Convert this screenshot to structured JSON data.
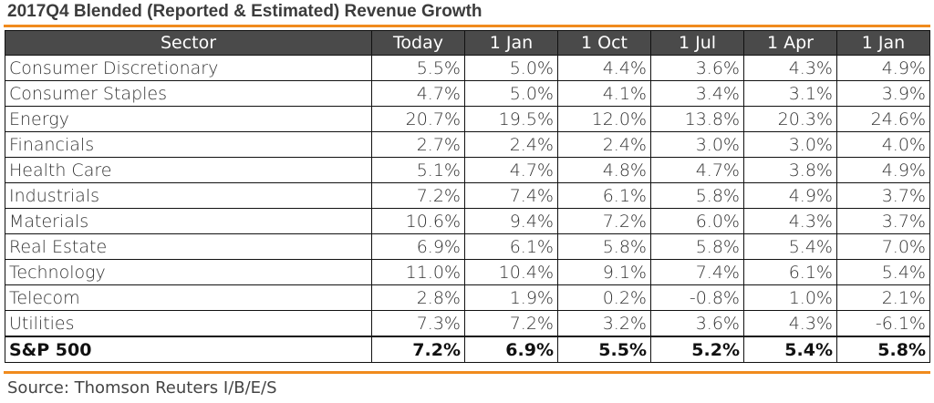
{
  "title": "2017Q4 Blended (Reported & Estimated) Revenue Growth",
  "table": {
    "headers": [
      "Sector",
      "Today",
      "1 Jan",
      "1 Oct",
      "1 Jul",
      "1 Apr",
      "1 Jan"
    ],
    "rows": [
      {
        "sector": "Consumer Discretionary",
        "values": [
          "5.5%",
          "5.0%",
          "4.4%",
          "3.6%",
          "4.3%",
          "4.9%"
        ]
      },
      {
        "sector": "Consumer Staples",
        "values": [
          "4.7%",
          "5.0%",
          "4.1%",
          "3.4%",
          "3.1%",
          "3.9%"
        ]
      },
      {
        "sector": "Energy",
        "values": [
          "20.7%",
          "19.5%",
          "12.0%",
          "13.8%",
          "20.3%",
          "24.6%"
        ]
      },
      {
        "sector": "Financials",
        "values": [
          "2.7%",
          "2.4%",
          "2.4%",
          "3.0%",
          "3.0%",
          "4.0%"
        ]
      },
      {
        "sector": "Health Care",
        "values": [
          "5.1%",
          "4.7%",
          "4.8%",
          "4.7%",
          "3.8%",
          "4.9%"
        ]
      },
      {
        "sector": "Industrials",
        "values": [
          "7.2%",
          "7.4%",
          "6.1%",
          "5.8%",
          "4.9%",
          "3.7%"
        ]
      },
      {
        "sector": "Materials",
        "values": [
          "10.6%",
          "9.4%",
          "7.2%",
          "6.0%",
          "4.3%",
          "3.7%"
        ]
      },
      {
        "sector": "Real Estate",
        "values": [
          "6.9%",
          "6.1%",
          "5.8%",
          "5.8%",
          "5.4%",
          "7.0%"
        ]
      },
      {
        "sector": "Technology",
        "values": [
          "11.0%",
          "10.4%",
          "9.1%",
          "7.4%",
          "6.1%",
          "5.4%"
        ]
      },
      {
        "sector": "Telecom",
        "values": [
          "2.8%",
          "1.9%",
          "0.2%",
          "-0.8%",
          "1.0%",
          "2.1%"
        ]
      },
      {
        "sector": "Utilities",
        "values": [
          "7.3%",
          "7.2%",
          "3.2%",
          "3.6%",
          "4.3%",
          "-6.1%"
        ]
      }
    ],
    "total": {
      "sector": "S&P 500",
      "values": [
        "7.2%",
        "6.9%",
        "5.5%",
        "5.2%",
        "5.4%",
        "5.8%"
      ]
    }
  },
  "source": "Source: Thomson Reuters I/B/E/S",
  "colors": {
    "accent_rule": "#f08b1d",
    "header_bg": "#4a4a4a",
    "header_text": "#ffffff"
  }
}
